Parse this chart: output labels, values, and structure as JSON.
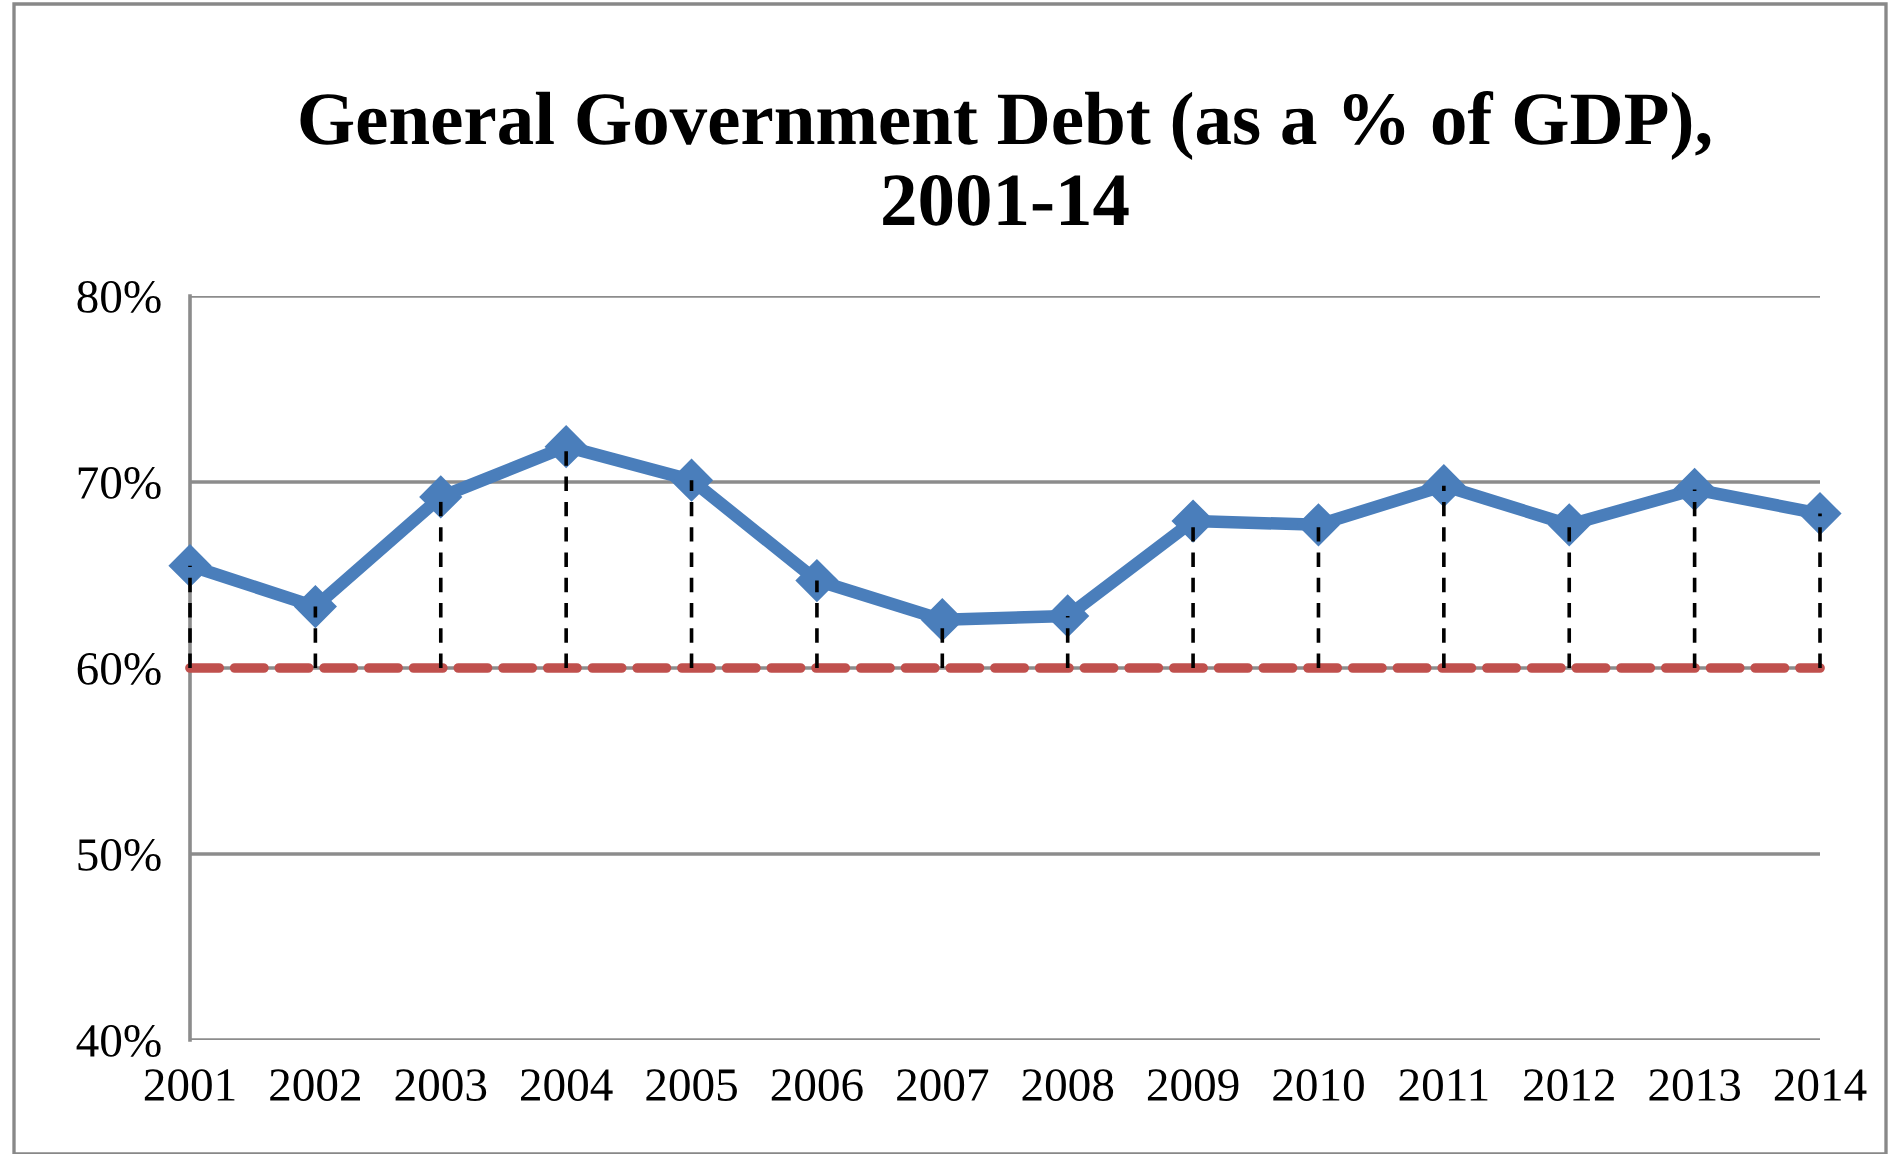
{
  "chart_data": {
    "type": "line",
    "title": "General Government Debt (as a % of GDP),\n2001-14",
    "categories": [
      "2001",
      "2002",
      "2003",
      "2004",
      "2005",
      "2006",
      "2007",
      "2008",
      "2009",
      "2010",
      "2011",
      "2012",
      "2013",
      "2014"
    ],
    "series": [
      {
        "color": "#4a7ebb",
        "values": [
          65.5,
          63.3,
          69.2,
          71.9,
          70.1,
          64.7,
          62.6,
          62.8,
          67.9,
          67.7,
          69.8,
          67.7,
          69.6,
          68.3
        ],
        "errors": [
          [
            60,
            65.5
          ],
          [
            60,
            63.3
          ],
          [
            60,
            69.2
          ],
          [
            60,
            71.9
          ],
          [
            60,
            70.1
          ],
          [
            60,
            64.7
          ],
          [
            60,
            62.6
          ],
          [
            60,
            62.8
          ],
          [
            60,
            67.9
          ],
          [
            60,
            67.7
          ],
          [
            60,
            69.8
          ],
          [
            60,
            67.7
          ],
          [
            60,
            69.6
          ],
          [
            60,
            68.3
          ]
        ]
      }
    ],
    "ylim": [
      40,
      80
    ],
    "yticks": [
      {
        "value": 40,
        "label": "40%"
      },
      {
        "value": 50,
        "label": "50%"
      },
      {
        "value": 60,
        "label": "60%"
      },
      {
        "value": 70,
        "label": "70%"
      },
      {
        "value": 80,
        "label": "80%"
      }
    ],
    "ref_lines": [
      {
        "axis": "y",
        "value": 60,
        "label": null,
        "color": "#c0504d",
        "line_style": "dashed"
      }
    ],
    "grid": "y",
    "legend": false,
    "marker": "diamond",
    "line_style": "solid"
  }
}
